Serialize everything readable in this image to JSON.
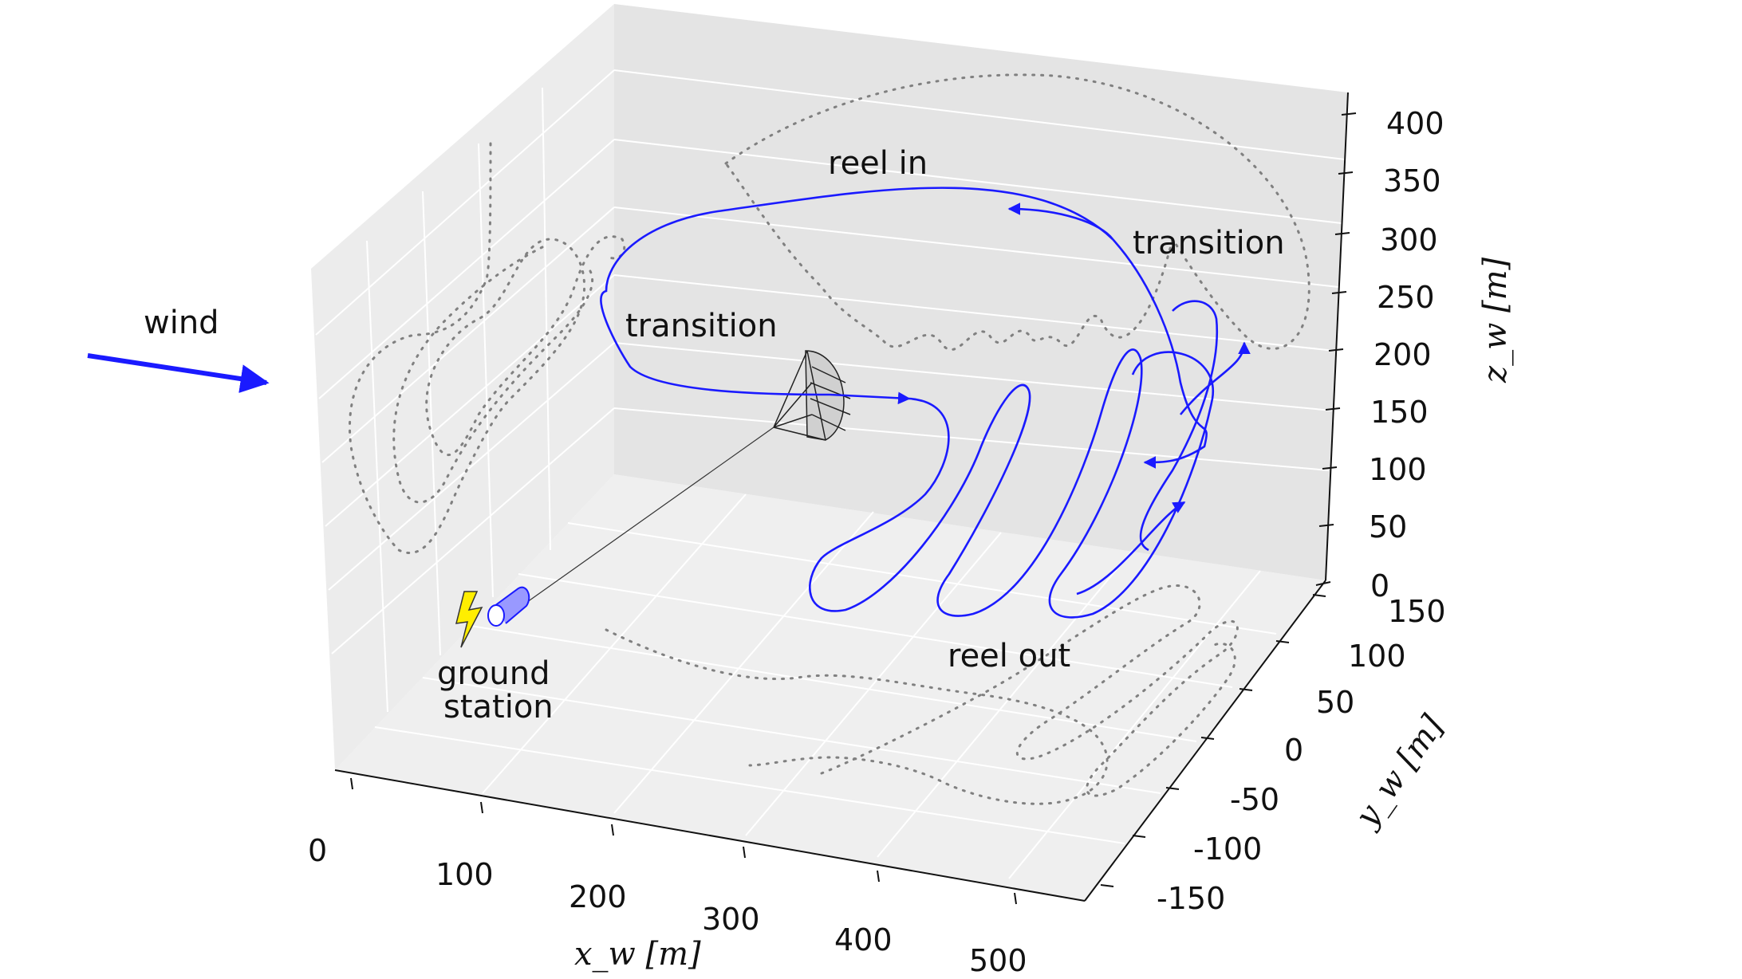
{
  "figure": {
    "wind_label": "wind",
    "ground_station_line1": "ground",
    "ground_station_line2": "station",
    "phase_labels": {
      "reel_in": "reel in",
      "transition_left": "transition",
      "transition_right": "transition",
      "reel_out": "reel out"
    }
  },
  "axes": {
    "x_label": "x_w [m]",
    "y_label": "y_w [m]",
    "z_label": "z_w [m]",
    "x_ticks": [
      "0",
      "100",
      "200",
      "300",
      "400",
      "500"
    ],
    "y_ticks": [
      "-150",
      "-100",
      "-50",
      "0",
      "50",
      "100",
      "150"
    ],
    "z_ticks": [
      "0",
      "50",
      "100",
      "150",
      "200",
      "250",
      "300",
      "350",
      "400"
    ]
  },
  "colors": {
    "trajectory": "#1a1aff",
    "wind_arrow": "#1a1aff",
    "projection": "#808080",
    "pane_back": "#e4e4e4",
    "pane_side": "#ececec",
    "pane_floor": "#efefef",
    "lightning": "#ffee00"
  }
}
